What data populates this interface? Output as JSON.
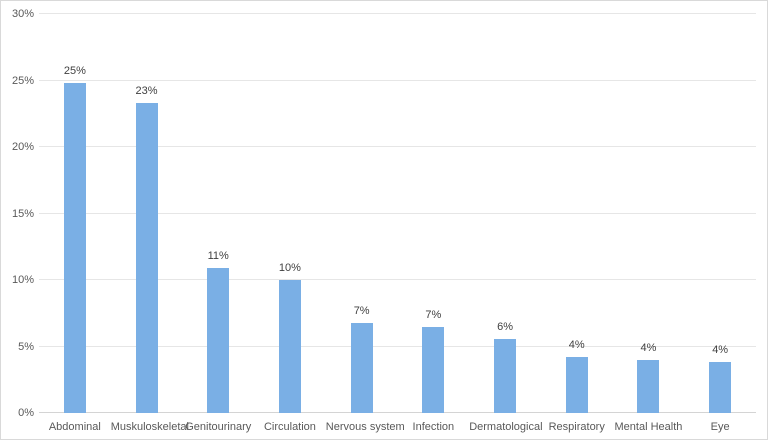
{
  "chart_data": {
    "type": "bar",
    "title": "",
    "categories": [
      "Abdominal",
      "Muskuloskeletal",
      "Genitourinary",
      "Circulation",
      "Nervous system",
      "Infection",
      "Dermatological",
      "Respiratory",
      "Mental Health",
      "Eye"
    ],
    "values": [
      24.8,
      23.3,
      10.9,
      10.0,
      6.8,
      6.5,
      5.6,
      4.2,
      4.0,
      3.8
    ],
    "data_labels": [
      "25%",
      "23%",
      "11%",
      "10%",
      "7%",
      "7%",
      "6%",
      "4%",
      "4%",
      "4%"
    ],
    "y_tick_values": [
      0,
      5,
      10,
      15,
      20,
      25,
      30
    ],
    "y_tick_labels": [
      "0%",
      "5%",
      "10%",
      "15%",
      "20%",
      "25%",
      "30%"
    ],
    "ylim": [
      0,
      30
    ],
    "xlabel": "",
    "ylabel": "",
    "grid": true,
    "legend_position": "none",
    "colors": {
      "bar_fill": "#7aafe5",
      "gridline": "#e6e6e6",
      "axis_line": "#d4d4d4",
      "tick_label": "#595959",
      "data_label": "#404040",
      "background": "#ffffff",
      "frame_border": "#d9d9d9"
    }
  }
}
